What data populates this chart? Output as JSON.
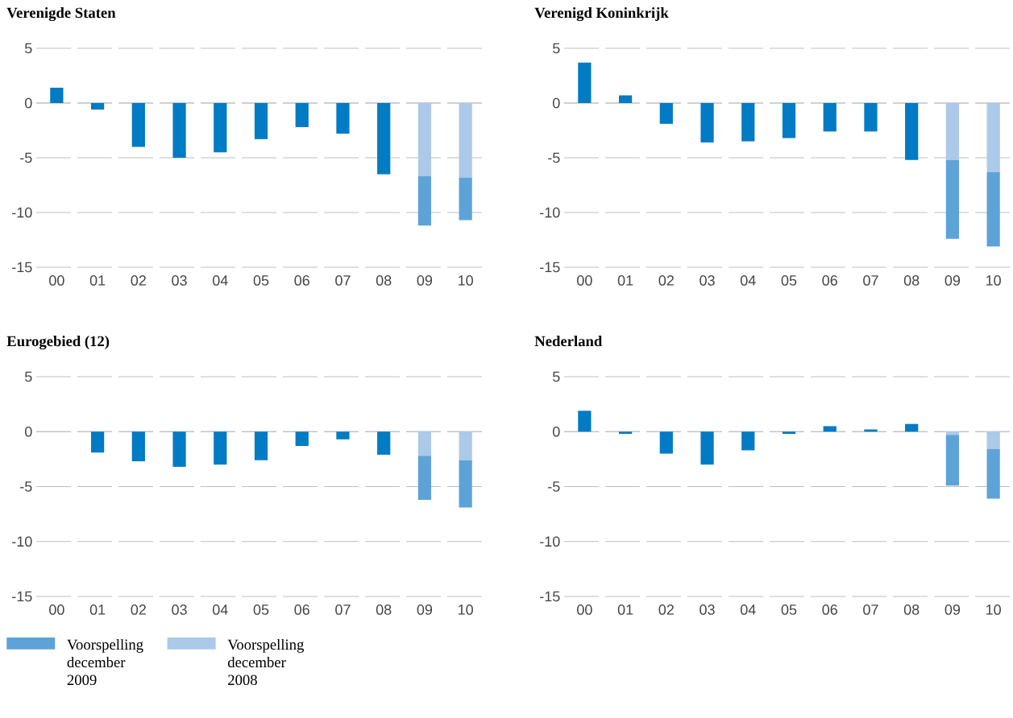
{
  "chart_data": [
    {
      "type": "bar",
      "title": "Verenigde Staten",
      "categories": [
        "00",
        "01",
        "02",
        "03",
        "04",
        "05",
        "06",
        "07",
        "08",
        "09",
        "10"
      ],
      "stacked": true,
      "ylim": [
        -15,
        5
      ],
      "yticks": [
        5,
        0,
        -5,
        -10,
        -15
      ],
      "grid": "y",
      "series": [
        {
          "color": "#007bc4",
          "values": [
            1.4,
            -0.6,
            -4.0,
            -5.0,
            -4.5,
            -3.3,
            -2.2,
            -2.8,
            -6.5,
            null,
            null
          ]
        },
        {
          "color": "#abc9e9",
          "values": [
            null,
            null,
            null,
            null,
            null,
            null,
            null,
            null,
            null,
            -6.7,
            -6.8
          ]
        },
        {
          "color": "#5ea3d8",
          "values": [
            null,
            null,
            null,
            null,
            null,
            null,
            null,
            null,
            null,
            -4.5,
            -3.9
          ]
        }
      ]
    },
    {
      "type": "bar",
      "title": "Verenigd Koninkrijk",
      "categories": [
        "00",
        "01",
        "02",
        "03",
        "04",
        "05",
        "06",
        "07",
        "08",
        "09",
        "10"
      ],
      "stacked": true,
      "ylim": [
        -15,
        5
      ],
      "yticks": [
        5,
        0,
        -5,
        -10,
        -15
      ],
      "grid": "y",
      "series": [
        {
          "color": "#007bc4",
          "values": [
            3.7,
            0.7,
            -1.9,
            -3.6,
            -3.5,
            -3.2,
            -2.6,
            -2.6,
            -5.2,
            null,
            null
          ]
        },
        {
          "color": "#abc9e9",
          "values": [
            null,
            null,
            null,
            null,
            null,
            null,
            null,
            null,
            null,
            -5.2,
            -6.3
          ]
        },
        {
          "color": "#5ea3d8",
          "values": [
            null,
            null,
            null,
            null,
            null,
            null,
            null,
            null,
            null,
            -7.2,
            -6.8
          ]
        }
      ]
    },
    {
      "type": "bar",
      "title": "Eurogebied (12)",
      "categories": [
        "00",
        "01",
        "02",
        "03",
        "04",
        "05",
        "06",
        "07",
        "08",
        "09",
        "10"
      ],
      "stacked": true,
      "ylim": [
        -15,
        5
      ],
      "yticks": [
        5,
        0,
        -5,
        -10,
        -15
      ],
      "grid": "y",
      "legend": "bottom",
      "series": [
        {
          "color": "#007bc4",
          "values": [
            null,
            -1.9,
            -2.7,
            -3.2,
            -3.0,
            -2.6,
            -1.3,
            -0.7,
            -2.1,
            null,
            null
          ]
        },
        {
          "name": "Voorspelling december 2008",
          "color": "#abc9e9",
          "values": [
            null,
            null,
            null,
            null,
            null,
            null,
            null,
            null,
            null,
            -2.2,
            -2.6
          ]
        },
        {
          "name": "Voorspelling december 2009",
          "color": "#5ea3d8",
          "values": [
            null,
            null,
            null,
            null,
            null,
            null,
            null,
            null,
            null,
            -4.0,
            -4.3
          ]
        }
      ]
    },
    {
      "type": "bar",
      "title": "Nederland",
      "categories": [
        "00",
        "01",
        "02",
        "03",
        "04",
        "05",
        "06",
        "07",
        "08",
        "09",
        "10"
      ],
      "stacked": true,
      "ylim": [
        -15,
        5
      ],
      "yticks": [
        5,
        0,
        -5,
        -10,
        -15
      ],
      "grid": "y",
      "series": [
        {
          "color": "#007bc4",
          "values": [
            1.9,
            -0.2,
            -2.0,
            -3.0,
            -1.7,
            -0.2,
            0.5,
            0.2,
            0.7,
            null,
            null
          ]
        },
        {
          "color": "#abc9e9",
          "values": [
            null,
            null,
            null,
            null,
            null,
            null,
            null,
            null,
            null,
            -0.3,
            -1.6
          ]
        },
        {
          "color": "#5ea3d8",
          "values": [
            null,
            null,
            null,
            null,
            null,
            null,
            null,
            null,
            null,
            -4.6,
            -4.5
          ]
        }
      ]
    }
  ]
}
